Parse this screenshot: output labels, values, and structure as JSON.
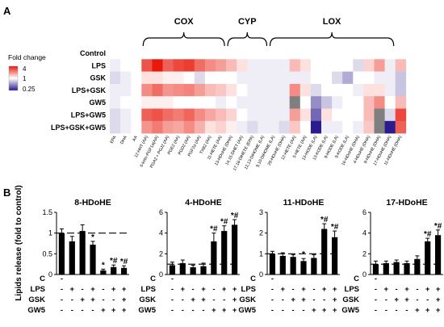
{
  "panel_labels": {
    "a": "A",
    "b": "B"
  },
  "legend": {
    "title": "Fold change",
    "ticks": [
      "4",
      "1",
      "0.25"
    ],
    "colors": {
      "low": "#2b1b8c",
      "mid": "#ffffff",
      "high": "#e8180a"
    }
  },
  "chart_data": [
    {
      "type": "heatmap",
      "groups": [
        {
          "label": "COX",
          "start": 0,
          "end": 7
        },
        {
          "label": "CYP",
          "start": 8,
          "end": 11
        },
        {
          "label": "LOX",
          "start": 12,
          "end": 23
        }
      ],
      "rows": [
        "Control",
        "LPS",
        "GSK",
        "LPS+GSK",
        "GW5",
        "LPS+GW5",
        "LPS+GSK+GW5"
      ],
      "fixed_columns": [
        "EPA",
        "DHA",
        "AA"
      ],
      "columns": [
        "12-HHT (AA)",
        "6-keto-PGF1α(AA)",
        "PGA2 + PGJ2 (AA)",
        "PGE2 (AA)",
        "PGD2 (AA)",
        "PGF2α (AA)",
        "TXB2 (AA)",
        "11-HETE (AA)",
        "13-HDoHE (DHA)",
        "14,15-DHET (AA)",
        "17,18-DiHETE (EPA)",
        "12,13-DiHOME (LA)",
        "9,10-DiHOME (LA)",
        "20-HDoHE (DHA)",
        "12-HETE (AA)",
        "5-HETE (AA)",
        "13-HODE (LA)",
        "13-KODE (LA)",
        "9-HODE (LA)",
        "9-KODE (LA)",
        "16-HDoHE (DHA)",
        "4-HDoHE (DHA)",
        "8-HDoHE (DHA)",
        "17-HDoHE (DHA)",
        "11-HDoHE (DHA)"
      ],
      "values": [
        [
          1,
          1,
          1,
          1,
          1,
          1,
          1,
          1,
          1,
          1,
          1,
          1,
          1,
          1,
          1,
          1,
          1,
          1,
          1,
          1,
          1,
          1,
          1,
          1,
          1,
          1,
          1,
          1
        ],
        [
          0.9,
          1,
          1,
          2.8,
          4.2,
          2.6,
          3.0,
          3.2,
          2.4,
          2.0,
          1.8,
          1.5,
          1.2,
          0.9,
          0.9,
          0.9,
          0.9,
          1.5,
          1.2,
          1.0,
          1.0,
          1.0,
          1.0,
          0.8,
          1.3,
          1.8,
          0.9,
          1.5
        ],
        [
          0.8,
          0.9,
          1,
          1.2,
          1.2,
          1.1,
          1.1,
          1.0,
          0.8,
          1.0,
          1.0,
          1.0,
          0.9,
          0.9,
          0.9,
          0.9,
          0.9,
          0.9,
          0.9,
          1.0,
          1.0,
          0.8,
          0.6,
          1.0,
          1.0,
          0.9,
          0.9,
          0.7
        ],
        [
          0.9,
          0.9,
          1,
          2.0,
          2.4,
          1.9,
          2.0,
          2.1,
          1.8,
          1.5,
          1.4,
          1.2,
          1.0,
          0.9,
          0.9,
          0.9,
          0.9,
          2.0,
          1.2,
          0.8,
          1.0,
          1.0,
          1.0,
          0.9,
          1.2,
          1.2,
          0.9,
          0.7
        ],
        [
          0.9,
          1.0,
          1,
          1.1,
          1.1,
          1.1,
          1.0,
          1.0,
          1.0,
          1.0,
          0.9,
          1.0,
          0.9,
          0.9,
          0.9,
          0.9,
          0.9,
          1.2,
          1.0,
          0.5,
          0.7,
          0.9,
          1.0,
          1.0,
          1.5,
          2.0,
          1.0,
          1.5
        ],
        [
          0.8,
          0.9,
          1,
          2.6,
          2.8,
          2.4,
          2.2,
          2.5,
          2.0,
          1.7,
          1.5,
          1.3,
          1.0,
          0.9,
          0.9,
          0.9,
          0.9,
          1.8,
          1.2,
          0.4,
          1.2,
          1.0,
          1.0,
          1.0,
          1.5,
          3.0,
          0.8,
          3.0
        ],
        [
          0.8,
          0.9,
          1,
          1.9,
          2.2,
          1.8,
          1.7,
          2.0,
          1.6,
          1.2,
          1.3,
          1.1,
          0.9,
          0.8,
          0.9,
          0.9,
          0.8,
          1.4,
          1.0,
          0.2,
          0.9,
          0.9,
          1.0,
          0.9,
          1.4,
          2.6,
          0.2,
          2.6
        ]
      ],
      "na_cells": [
        [
          4,
          17
        ],
        [
          5,
          25
        ],
        [
          6,
          25
        ]
      ],
      "na_color": "#7f7f7f"
    },
    {
      "type": "bar",
      "title": "8-HDoHE",
      "ylabel": "Lipids release (fold to control)",
      "ylim": [
        0,
        1.5
      ],
      "yticks": [
        "0",
        "0.5",
        "1",
        "1.5"
      ],
      "values": [
        1.0,
        0.8,
        1.05,
        0.72,
        0.1,
        0.18,
        0.16
      ],
      "errors": [
        0.1,
        0.12,
        0.15,
        0.08,
        0.03,
        0.05,
        0.05
      ],
      "annotations": [
        "",
        "",
        "",
        "*",
        "*",
        "*#",
        "*#"
      ],
      "reference_line": 1
    },
    {
      "type": "bar",
      "title": "4-HDoHE",
      "ylim": [
        0,
        6
      ],
      "yticks": [
        "0",
        "2",
        "4",
        "6"
      ],
      "values": [
        0.9,
        1.1,
        0.7,
        0.8,
        3.2,
        4.2,
        4.8
      ],
      "errors": [
        0.3,
        0.3,
        0.2,
        0.3,
        0.8,
        0.5,
        0.5
      ],
      "annotations": [
        "",
        "",
        "",
        "",
        "*#",
        "*#",
        "*#"
      ],
      "reference_line": 1
    },
    {
      "type": "bar",
      "title": "11-HDoHE",
      "ylim": [
        0,
        3
      ],
      "yticks": [
        "0",
        "1",
        "2",
        "3"
      ],
      "values": [
        1.0,
        0.9,
        0.85,
        0.65,
        0.8,
        2.2,
        1.8
      ],
      "errors": [
        0.12,
        0.15,
        0.1,
        0.12,
        0.15,
        0.25,
        0.3
      ],
      "annotations": [
        "",
        "",
        "",
        "*",
        "",
        "*#",
        "*#"
      ],
      "reference_line": 1
    },
    {
      "type": "bar",
      "title": "17-HDoHE",
      "ylim": [
        0,
        6
      ],
      "yticks": [
        "0",
        "2",
        "4",
        "6"
      ],
      "values": [
        1.0,
        1.1,
        1.2,
        1.1,
        1.5,
        3.2,
        3.8
      ],
      "errors": [
        0.3,
        0.2,
        0.2,
        0.2,
        0.3,
        0.3,
        0.5
      ],
      "annotations": [
        "",
        "",
        "",
        "",
        "",
        "*#",
        "*#"
      ],
      "reference_line": 1
    }
  ],
  "treatments": {
    "labels": [
      "C",
      "LPS",
      "GSK",
      "GW5"
    ],
    "signs": [
      [
        "-",
        "",
        "",
        "",
        "",
        "",
        ""
      ],
      [
        "-",
        "+",
        "-",
        "+",
        "-",
        "+",
        "+"
      ],
      [
        "-",
        "-",
        "+",
        "+",
        "-",
        "-",
        "+"
      ],
      [
        "-",
        "-",
        "-",
        "-",
        "+",
        "+",
        "+"
      ]
    ]
  }
}
